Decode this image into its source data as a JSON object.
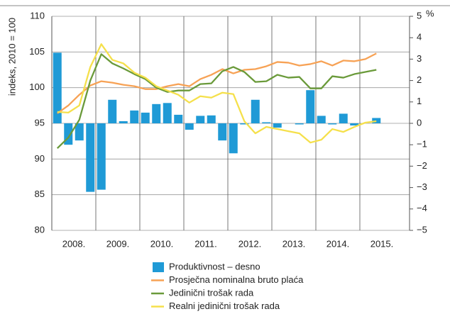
{
  "chart_data": {
    "type": "combo",
    "ylabel": "indeks, 2010 = 100",
    "y2label": "%",
    "categories": [
      "2008.",
      null,
      null,
      null,
      "2009.",
      null,
      null,
      null,
      "2010.",
      null,
      null,
      null,
      "2011.",
      null,
      null,
      null,
      "2012.",
      null,
      null,
      null,
      "2013.",
      null,
      null,
      null,
      "2014.",
      null,
      null,
      null,
      "2015.",
      null
    ],
    "ylim": [
      80,
      110
    ],
    "yticks": [
      80,
      85,
      90,
      95,
      100,
      105,
      110
    ],
    "y2lim": [
      -5,
      5
    ],
    "y2ticks": [
      {
        "value": -5,
        "label": "−5"
      },
      {
        "value": -4,
        "label": "−4"
      },
      {
        "value": -3,
        "label": "−3"
      },
      {
        "value": -2,
        "label": "−2"
      },
      {
        "value": -1,
        "label": "−1"
      },
      0,
      1,
      2,
      3,
      4,
      5
    ],
    "grid": true,
    "series": [
      {
        "name": "Produktivnost – desno",
        "type": "bar",
        "axis": "y2",
        "color": "#1f9ad6",
        "values": [
          3.3,
          -1.0,
          -0.8,
          -3.2,
          -3.1,
          1.1,
          0.1,
          0.6,
          0.5,
          0.9,
          0.95,
          0.4,
          -0.3,
          0.35,
          0.37,
          -0.8,
          -1.4,
          -0.05,
          1.1,
          0.05,
          -0.2,
          0.0,
          -0.05,
          1.55,
          0.35,
          -0.05,
          0.45,
          -0.1,
          0.0,
          0.25
        ]
      },
      {
        "name": "Prosječna nominalna bruto plaća",
        "type": "line",
        "color": "#f7a255",
        "values": [
          96.4,
          97.5,
          99.0,
          100.3,
          100.9,
          100.7,
          100.4,
          100.2,
          99.8,
          99.8,
          100.2,
          100.5,
          100.2,
          101.2,
          101.8,
          102.6,
          102.0,
          102.5,
          102.6,
          103.0,
          103.6,
          103.5,
          103.1,
          103.3,
          103.7,
          103.1,
          103.8,
          103.7,
          104.0,
          104.8
        ]
      },
      {
        "name": "Jedinični trošak rada",
        "type": "line",
        "color": "#6a9a3a",
        "values": [
          91.5,
          93.0,
          95.5,
          101.0,
          104.7,
          103.4,
          102.7,
          101.9,
          101.2,
          100.0,
          99.4,
          99.6,
          99.6,
          100.5,
          100.6,
          102.3,
          102.9,
          102.2,
          100.8,
          100.9,
          101.8,
          101.4,
          101.5,
          99.9,
          99.9,
          101.6,
          101.4,
          101.9,
          102.2,
          102.5
        ]
      },
      {
        "name": "Realni jedinični trošak rada",
        "type": "line",
        "color": "#f5e04b",
        "values": [
          96.6,
          96.5,
          97.5,
          102.9,
          106.1,
          103.9,
          103.4,
          102.1,
          101.4,
          100.2,
          99.6,
          99.0,
          97.9,
          98.8,
          98.6,
          99.3,
          99.1,
          95.3,
          93.6,
          94.5,
          94.2,
          93.9,
          93.6,
          92.3,
          92.7,
          94.2,
          93.8,
          94.5,
          95.1,
          95.3
        ]
      }
    ]
  }
}
